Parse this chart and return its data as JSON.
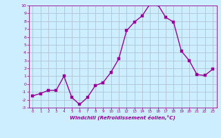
{
  "x": [
    0,
    1,
    2,
    3,
    4,
    5,
    6,
    7,
    8,
    9,
    10,
    11,
    12,
    13,
    14,
    15,
    16,
    17,
    18,
    19,
    20,
    21,
    22,
    23
  ],
  "y": [
    -1.5,
    -1.2,
    -0.8,
    -0.8,
    1.0,
    -1.7,
    -2.6,
    -1.7,
    -0.2,
    0.2,
    1.5,
    3.2,
    6.8,
    7.9,
    8.7,
    10.2,
    10.1,
    8.5,
    7.9,
    4.2,
    3.0,
    1.2,
    1.1,
    1.9
  ],
  "line_color": "#990099",
  "marker_color": "#990099",
  "bg_color": "#cceeff",
  "grid_color": "#aabbcc",
  "xlabel": "Windchill (Refroidissement éolien,°C)",
  "xlabel_color": "#990099",
  "tick_color": "#990099",
  "ylim": [
    -3,
    10
  ],
  "xlim": [
    -0.5,
    23.5
  ],
  "yticks": [
    -3,
    -2,
    -1,
    0,
    1,
    2,
    3,
    4,
    5,
    6,
    7,
    8,
    9,
    10
  ],
  "xticks": [
    0,
    1,
    2,
    3,
    4,
    5,
    6,
    7,
    8,
    9,
    10,
    11,
    12,
    13,
    14,
    15,
    16,
    17,
    18,
    19,
    20,
    21,
    22,
    23
  ],
  "marker_size": 2.5,
  "line_width": 1.0,
  "tick_fontsize_x": 4.0,
  "tick_fontsize_y": 4.5,
  "xlabel_fontsize": 5.2
}
